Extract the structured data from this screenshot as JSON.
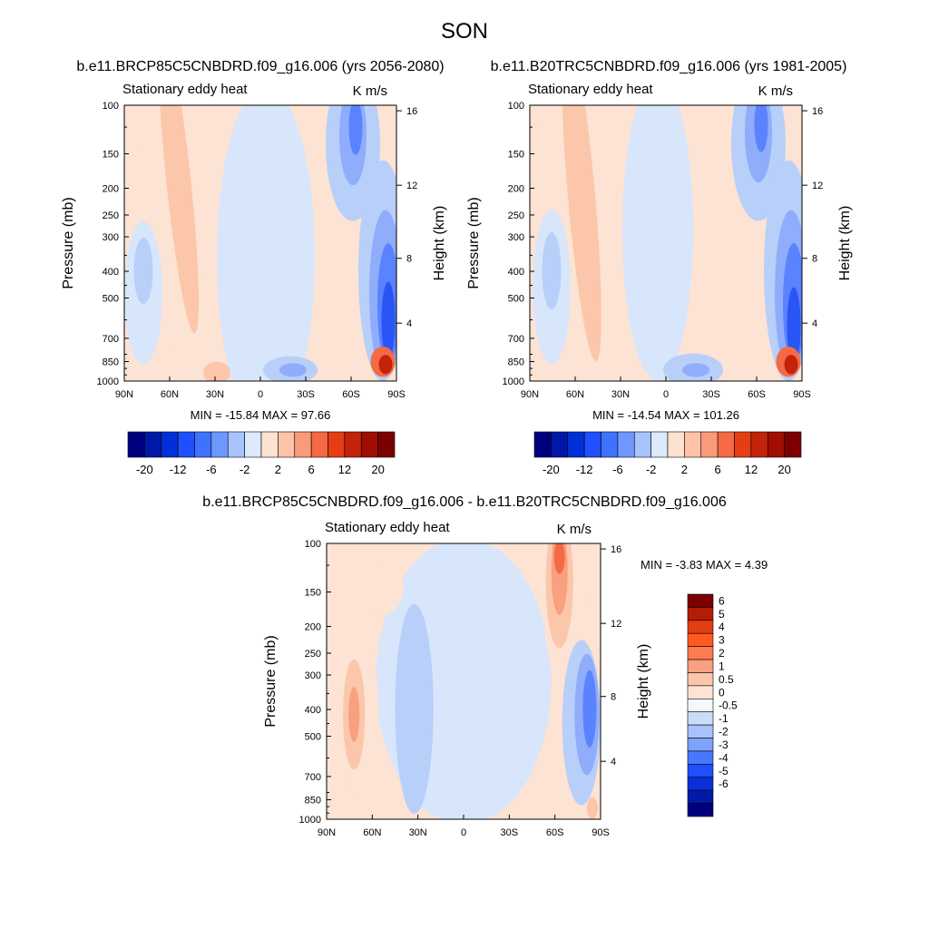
{
  "season": "SON",
  "chart_data": [
    {
      "type": "heatmap",
      "title": "b.e11.BRCP85C5CNBDRD.f09_g16.006 (yrs 2056-2080)",
      "subtitle_left": "Stationary eddy heat",
      "units": "K m/s",
      "xlabel": "",
      "ylabel": "Pressure (mb)",
      "ylabel_right": "Height (km)",
      "x_ticks": [
        "90N",
        "60N",
        "30N",
        "0",
        "30S",
        "60S",
        "90S"
      ],
      "y_ticks": [
        "100",
        "150",
        "200",
        "250",
        "300",
        "400",
        "500",
        "700",
        "850",
        "1000"
      ],
      "y_right_ticks": [
        "16",
        "12",
        "8",
        "4"
      ],
      "stats": "MIN = -15.84  MAX = 97.66",
      "colorbar_labels": [
        "-20",
        "-12",
        "-6",
        "-2",
        "2",
        "6",
        "12",
        "20"
      ]
    },
    {
      "type": "heatmap",
      "title": "b.e11.B20TRC5CNBDRD.f09_g16.006 (yrs 1981-2005)",
      "subtitle_left": "Stationary eddy heat",
      "units": "K m/s",
      "xlabel": "",
      "ylabel": "Pressure (mb)",
      "ylabel_right": "Height (km)",
      "x_ticks": [
        "90N",
        "60N",
        "30N",
        "0",
        "30S",
        "60S",
        "90S"
      ],
      "y_ticks": [
        "100",
        "150",
        "200",
        "250",
        "300",
        "400",
        "500",
        "700",
        "850",
        "1000"
      ],
      "y_right_ticks": [
        "16",
        "12",
        "8",
        "4"
      ],
      "stats": "MIN = -14.54  MAX = 101.26",
      "colorbar_labels": [
        "-20",
        "-12",
        "-6",
        "-2",
        "2",
        "6",
        "12",
        "20"
      ]
    },
    {
      "type": "heatmap",
      "title": "b.e11.BRCP85C5CNBDRD.f09_g16.006 - b.e11.B20TRC5CNBDRD.f09_g16.006",
      "subtitle_left": "Stationary eddy heat",
      "units": "K m/s",
      "xlabel": "",
      "ylabel": "Pressure (mb)",
      "ylabel_right": "Height (km)",
      "x_ticks": [
        "90N",
        "60N",
        "30N",
        "0",
        "30S",
        "60S",
        "90S"
      ],
      "y_ticks": [
        "100",
        "150",
        "200",
        "250",
        "300",
        "400",
        "500",
        "700",
        "850",
        "1000"
      ],
      "y_right_ticks": [
        "16",
        "12",
        "8",
        "4"
      ],
      "stats": "MIN =  -3.83  MAX =   4.39",
      "colorbar_labels": [
        "6",
        "5",
        "4",
        "3",
        "2",
        "1",
        "0.5",
        "0",
        "-0.5",
        "-1",
        "-2",
        "-3",
        "-4",
        "-5",
        "-6"
      ]
    }
  ],
  "colors": {
    "horizontal_colorbar": [
      "#00007f",
      "#0018a8",
      "#0030d8",
      "#1f4fff",
      "#3f72ff",
      "#6f98ff",
      "#a8c4ff",
      "#dde9fc",
      "#fde2d2",
      "#fdc2a8",
      "#f99a78",
      "#f46a45",
      "#e73d14",
      "#c32308",
      "#a00e03",
      "#7c0000"
    ],
    "vertical_colorbar": [
      "#7c0000",
      "#b31d05",
      "#e33e0f",
      "#ff5b1f",
      "#ff7a4d",
      "#f8a07f",
      "#fcc6ab",
      "#fde3d3",
      "#f4f8fd",
      "#c9dcf8",
      "#a8c3fb",
      "#7fa2fb",
      "#4a77ff",
      "#1f4fff",
      "#0a2fd8",
      "#001aaa",
      "#00007f"
    ],
    "pos_light": "#fde3d3",
    "pos_medium": "#fcc6ab",
    "pos_strong": "#f8a07f",
    "pos_vstrong": "#f46a45",
    "pos_extreme": "#c32308",
    "neg_light": "#d8e6fb",
    "neg_medium": "#b8cff9",
    "neg_strong": "#8fadfb",
    "neg_vstrong": "#5b82ff",
    "neg_extreme": "#2a55f6"
  }
}
